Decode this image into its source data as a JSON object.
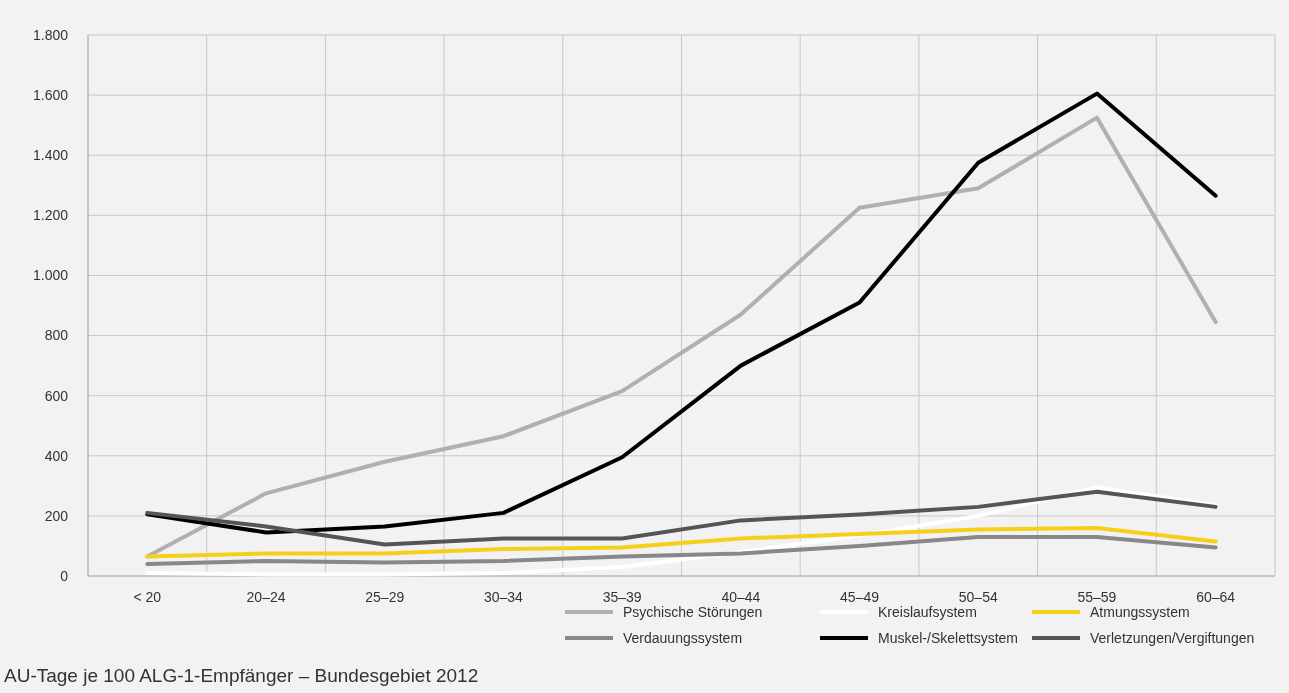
{
  "chart_data": {
    "type": "line",
    "categories": [
      "< 20",
      "20–24",
      "25–29",
      "30–34",
      "35–39",
      "40–44",
      "45–49",
      "50–54",
      "55–59",
      "60–64"
    ],
    "series": [
      {
        "name": "Psychische Störungen",
        "color": "#b0b0b0",
        "values": [
          65,
          275,
          380,
          465,
          615,
          870,
          1225,
          1290,
          1525,
          845
        ]
      },
      {
        "name": "Kreislaufsystem",
        "color": "#ffffff",
        "values": [
          10,
          5,
          5,
          10,
          30,
          80,
          135,
          200,
          295,
          235
        ]
      },
      {
        "name": "Atmungssystem",
        "color": "#f5d019",
        "values": [
          65,
          75,
          75,
          90,
          95,
          125,
          140,
          155,
          160,
          115
        ]
      },
      {
        "name": "Verdauungssystem",
        "color": "#888888",
        "values": [
          40,
          50,
          45,
          50,
          65,
          75,
          100,
          130,
          130,
          95
        ]
      },
      {
        "name": "Muskel-/Skelettsystem",
        "color": "#000000",
        "values": [
          205,
          145,
          165,
          210,
          395,
          700,
          910,
          1375,
          1605,
          1265
        ]
      },
      {
        "name": "Verletzungen/Vergiftungen",
        "color": "#555555",
        "values": [
          210,
          165,
          105,
          125,
          125,
          185,
          205,
          230,
          280,
          230
        ]
      }
    ],
    "ylim": [
      0,
      1800
    ],
    "yticks": [
      0,
      {
        "value": 200,
        "label": "200"
      },
      {
        "value": 400,
        "label": "400"
      },
      {
        "value": 600,
        "label": "600"
      },
      {
        "value": 800,
        "label": "800"
      },
      {
        "value": 1000,
        "label": "1.000"
      },
      {
        "value": 1200,
        "label": "1.200"
      },
      {
        "value": 1400,
        "label": "1.400"
      },
      {
        "value": 1600,
        "label": "1.600"
      },
      {
        "value": 1800,
        "label": "1.800"
      }
    ],
    "grid": true,
    "legend": "bottom right",
    "marker": "none",
    "line_style": "solid",
    "annotations": [
      "AU-Tage je 100 ALG-1-Empfänger – Bundesgebiet 2012"
    ]
  }
}
